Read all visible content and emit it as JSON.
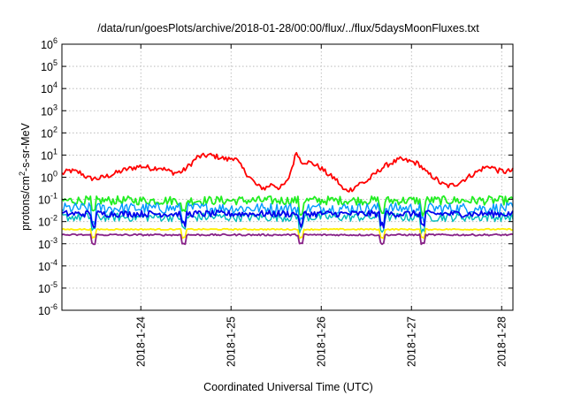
{
  "chart_data": {
    "type": "line",
    "title": "/data/run/goesPlots/archive/2018-01-28/00:00/flux/../flux/5daysMoonFluxes.txt",
    "xlabel": "Coordinated Universal Time (UTC)",
    "ylabel_parts": {
      "base": "protons/cm",
      "sup": "2",
      "rest": "-s-sr-MeV"
    },
    "yscale": "log",
    "ylim_exp": [
      -6,
      6
    ],
    "y_tick_labels": [
      {
        "exp": 6,
        "base": "10",
        "sup": "6"
      },
      {
        "exp": 5,
        "base": "10",
        "sup": "5"
      },
      {
        "exp": 4,
        "base": "10",
        "sup": "4"
      },
      {
        "exp": 3,
        "base": "10",
        "sup": "3"
      },
      {
        "exp": 2,
        "base": "10",
        "sup": "2"
      },
      {
        "exp": 1,
        "base": "10",
        "sup": "1"
      },
      {
        "exp": 0,
        "base": "10",
        "sup": "0"
      },
      {
        "exp": -1,
        "base": "10",
        "sup": "-1"
      },
      {
        "exp": -2,
        "base": "10",
        "sup": "-2"
      },
      {
        "exp": -3,
        "base": "10",
        "sup": "-3"
      },
      {
        "exp": -4,
        "base": "10",
        "sup": "-4"
      },
      {
        "exp": -5,
        "base": "10",
        "sup": "-5"
      },
      {
        "exp": -6,
        "base": "10",
        "sup": "-6"
      }
    ],
    "xlim": [
      "2018-01-23 03:00",
      "2018-01-28 03:00"
    ],
    "x_ticks": [
      {
        "label": "2018-1-24",
        "date": "2018-01-24 00:00"
      },
      {
        "label": "2018-1-25",
        "date": "2018-01-25 00:00"
      },
      {
        "label": "2018-1-26",
        "date": "2018-01-26 00:00"
      },
      {
        "label": "2018-1-27",
        "date": "2018-01-27 00:00"
      },
      {
        "label": "2018-1-28",
        "date": "2018-01-28 00:00"
      }
    ],
    "grid": true,
    "series": [
      {
        "color": "#ff0000",
        "width": 1.8,
        "noise": 0.12,
        "y_log10": [
          {
            "x": "2018-01-23 03:00",
            "y": 0.15
          },
          {
            "x": "2018-01-23 05:00",
            "y": 0.3
          },
          {
            "x": "2018-01-23 08:00",
            "y": 0.2
          },
          {
            "x": "2018-01-23 10:00",
            "y": -0.05
          },
          {
            "x": "2018-01-23 13:00",
            "y": -0.05
          },
          {
            "x": "2018-01-23 16:00",
            "y": 0.1
          },
          {
            "x": "2018-01-23 20:00",
            "y": 0.35
          },
          {
            "x": "2018-01-24 00:00",
            "y": 0.5
          },
          {
            "x": "2018-01-24 03:00",
            "y": 0.4
          },
          {
            "x": "2018-01-24 05:00",
            "y": 0.45
          },
          {
            "x": "2018-01-24 07:00",
            "y": 0.3
          },
          {
            "x": "2018-01-24 09:00",
            "y": 0.2
          },
          {
            "x": "2018-01-24 11:00",
            "y": 0.25
          },
          {
            "x": "2018-01-24 13:00",
            "y": 0.55
          },
          {
            "x": "2018-01-24 15:00",
            "y": 0.9
          },
          {
            "x": "2018-01-24 18:00",
            "y": 1.0
          },
          {
            "x": "2018-01-24 21:00",
            "y": 0.9
          },
          {
            "x": "2018-01-24 23:00",
            "y": 0.8
          },
          {
            "x": "2018-01-25 01:00",
            "y": 0.9
          },
          {
            "x": "2018-01-25 03:00",
            "y": 0.4
          },
          {
            "x": "2018-01-25 05:00",
            "y": 0.0
          },
          {
            "x": "2018-01-25 07:00",
            "y": -0.4
          },
          {
            "x": "2018-01-25 09:00",
            "y": -0.5
          },
          {
            "x": "2018-01-25 11:00",
            "y": -0.3
          },
          {
            "x": "2018-01-25 13:00",
            "y": -0.5
          },
          {
            "x": "2018-01-25 15:00",
            "y": -0.2
          },
          {
            "x": "2018-01-25 16:30",
            "y": 0.6
          },
          {
            "x": "2018-01-25 17:30",
            "y": 1.2
          },
          {
            "x": "2018-01-25 18:30",
            "y": 0.7
          },
          {
            "x": "2018-01-25 20:00",
            "y": 0.7
          },
          {
            "x": "2018-01-25 22:00",
            "y": 0.6
          },
          {
            "x": "2018-01-26 00:00",
            "y": 0.4
          },
          {
            "x": "2018-01-26 02:00",
            "y": 0.1
          },
          {
            "x": "2018-01-26 04:00",
            "y": -0.1
          },
          {
            "x": "2018-01-26 06:00",
            "y": -0.6
          },
          {
            "x": "2018-01-26 08:00",
            "y": -0.55
          },
          {
            "x": "2018-01-26 10:00",
            "y": -0.3
          },
          {
            "x": "2018-01-26 12:00",
            "y": -0.2
          },
          {
            "x": "2018-01-26 14:00",
            "y": 0.1
          },
          {
            "x": "2018-01-26 16:00",
            "y": 0.4
          },
          {
            "x": "2018-01-26 18:00",
            "y": 0.6
          },
          {
            "x": "2018-01-26 21:00",
            "y": 0.8
          },
          {
            "x": "2018-01-27 00:00",
            "y": 0.7
          },
          {
            "x": "2018-01-27 02:00",
            "y": 0.6
          },
          {
            "x": "2018-01-27 04:00",
            "y": 0.2
          },
          {
            "x": "2018-01-27 06:00",
            "y": 0.0
          },
          {
            "x": "2018-01-27 08:00",
            "y": -0.3
          },
          {
            "x": "2018-01-27 10:00",
            "y": -0.4
          },
          {
            "x": "2018-01-27 12:00",
            "y": -0.3
          },
          {
            "x": "2018-01-27 14:00",
            "y": -0.1
          },
          {
            "x": "2018-01-27 17:00",
            "y": 0.2
          },
          {
            "x": "2018-01-27 19:00",
            "y": 0.4
          },
          {
            "x": "2018-01-27 21:00",
            "y": 0.5
          },
          {
            "x": "2018-01-27 23:00",
            "y": 0.3
          },
          {
            "x": "2018-01-28 01:00",
            "y": 0.25
          },
          {
            "x": "2018-01-28 03:00",
            "y": 0.3
          }
        ]
      },
      {
        "color": "#22ee22",
        "width": 1.8,
        "base": -1.05,
        "noise": 0.2,
        "dips": true
      },
      {
        "color": "#0099ff",
        "width": 1.4,
        "base": -1.4,
        "noise": 0.25,
        "dips": true
      },
      {
        "color": "#00bbbb",
        "width": 1.4,
        "base": -1.8,
        "noise": 0.2,
        "dips": true
      },
      {
        "color": "#0000ee",
        "width": 1.8,
        "base": -1.65,
        "noise": 0.15,
        "dips": true
      },
      {
        "color": "#ffee00",
        "width": 1.8,
        "base": -2.35,
        "noise": 0.03,
        "dips": true
      },
      {
        "color": "#882288",
        "width": 1.8,
        "base": -2.6,
        "noise": 0.04,
        "dips": true
      }
    ]
  }
}
